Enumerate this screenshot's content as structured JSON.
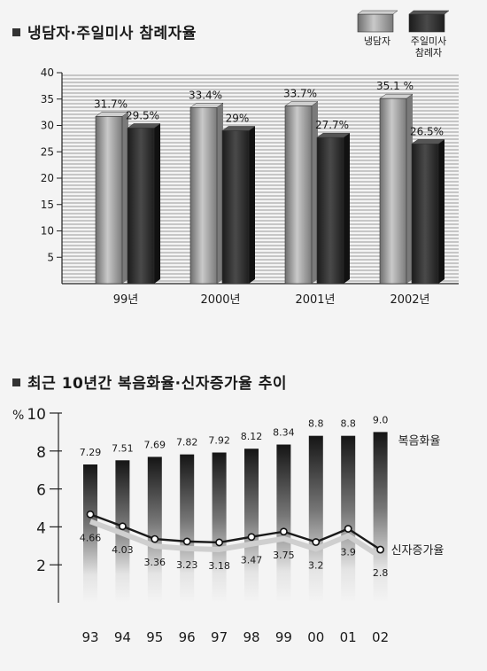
{
  "chart_data": [
    {
      "type": "bar",
      "title": "냉담자·주일미사 참례자율",
      "categories": [
        "99년",
        "2000년",
        "2001년",
        "2002년"
      ],
      "ylim": [
        0,
        40
      ],
      "yticks": [
        5,
        10,
        15,
        20,
        25,
        30,
        35,
        40
      ],
      "legend_position": "top-right",
      "series": [
        {
          "name": "냉담자",
          "values": [
            31.7,
            33.4,
            33.7,
            35.1
          ],
          "labels": [
            "31.7%",
            "33.4%",
            "33.7%",
            "35.1 %"
          ],
          "color": "#a9a9a9"
        },
        {
          "name": "주일미사 참례자",
          "values": [
            29.5,
            29,
            27.7,
            26.5
          ],
          "labels": [
            "29.5%",
            "29%",
            "27.7%",
            "26.5%"
          ],
          "color": "#2e2e2e"
        }
      ]
    },
    {
      "type": "bar",
      "title": "최근 10년간 복음화율·신자증가율 추이",
      "unit": "%",
      "categories": [
        "93",
        "94",
        "95",
        "96",
        "97",
        "98",
        "99",
        "00",
        "01",
        "02"
      ],
      "ylim": [
        0,
        10
      ],
      "yticks": [
        2,
        4,
        6,
        8,
        10
      ],
      "series": [
        {
          "name": "복음화율",
          "kind": "bar",
          "values": [
            7.29,
            7.51,
            7.69,
            7.82,
            7.92,
            8.12,
            8.34,
            8.8,
            8.8,
            9.0
          ],
          "labels": [
            "7.29",
            "7.51",
            "7.69",
            "7.82",
            "7.92",
            "8.12",
            "8.34",
            "8.8",
            "8.8",
            "9.0"
          ]
        },
        {
          "name": "신자증가율",
          "kind": "line",
          "values": [
            4.66,
            4.03,
            3.36,
            3.23,
            3.18,
            3.47,
            3.75,
            3.2,
            3.9,
            2.8
          ],
          "labels": [
            "4.66",
            "4.03",
            "3.36",
            "3.23",
            "3.18",
            "3.47",
            "3.75",
            "3.2",
            "3.9",
            "2.8"
          ]
        }
      ]
    }
  ]
}
